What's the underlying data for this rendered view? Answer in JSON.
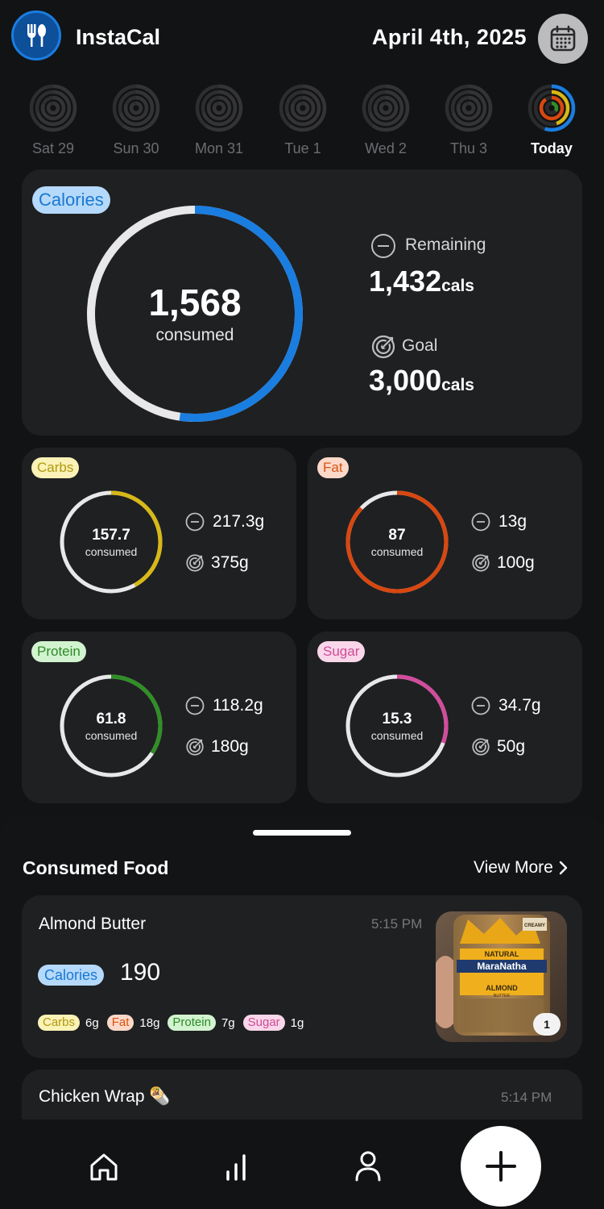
{
  "header": {
    "app_title": "InstaCal",
    "date": "April 4th, 2025"
  },
  "week": [
    {
      "label": "Sat 29",
      "today": false
    },
    {
      "label": "Sun 30",
      "today": false
    },
    {
      "label": "Mon 31",
      "today": false
    },
    {
      "label": "Tue 1",
      "today": false
    },
    {
      "label": "Wed 2",
      "today": false
    },
    {
      "label": "Thu 3",
      "today": false
    },
    {
      "label": "Today",
      "today": true
    }
  ],
  "calories": {
    "badge": "Calories",
    "consumed": "1,568",
    "consumed_label": "consumed",
    "remaining_label": "Remaining",
    "remaining": "1,432",
    "remaining_unit": "cals",
    "goal_label": "Goal",
    "goal": "3,000",
    "goal_unit": "cals",
    "progress": 0.523,
    "color": "#1a7de0"
  },
  "macros": {
    "carbs": {
      "badge": "Carbs",
      "consumed": "157.7",
      "consumed_label": "consumed",
      "remaining": "217.3g",
      "goal": "375g",
      "progress": 0.42,
      "color": "#d7b816"
    },
    "fat": {
      "badge": "Fat",
      "consumed": "87",
      "consumed_label": "consumed",
      "remaining": "13g",
      "goal": "100g",
      "progress": 0.87,
      "color": "#d8470f"
    },
    "protein": {
      "badge": "Protein",
      "consumed": "61.8",
      "consumed_label": "consumed",
      "remaining": "118.2g",
      "goal": "180g",
      "progress": 0.343,
      "color": "#2f8f25"
    },
    "sugar": {
      "badge": "Sugar",
      "consumed": "15.3",
      "consumed_label": "consumed",
      "remaining": "34.7g",
      "goal": "50g",
      "progress": 0.306,
      "color": "#d24c9c"
    }
  },
  "consumed_food": {
    "title": "Consumed Food",
    "view_more": "View More",
    "items": [
      {
        "name": "Almond Butter",
        "time": "5:15 PM",
        "cal_badge": "Calories",
        "calories": "190",
        "carbs_label": "Carbs",
        "carbs": "6g",
        "fat_label": "Fat",
        "fat": "18g",
        "protein_label": "Protein",
        "protein": "7g",
        "sugar_label": "Sugar",
        "sugar": "1g",
        "photo_count": "1",
        "jar_brand_top": "NATURAL",
        "jar_brand": "MaraNatha",
        "jar_sub": "ALMOND",
        "jar_sub2": "BUTTER",
        "jar_tag": "CREAMY"
      },
      {
        "name": "Chicken Wrap 🌯",
        "time": "5:14 PM"
      }
    ]
  },
  "nav": {
    "items": [
      "home-icon",
      "stats-icon",
      "profile-icon"
    ],
    "add": "plus-icon"
  }
}
